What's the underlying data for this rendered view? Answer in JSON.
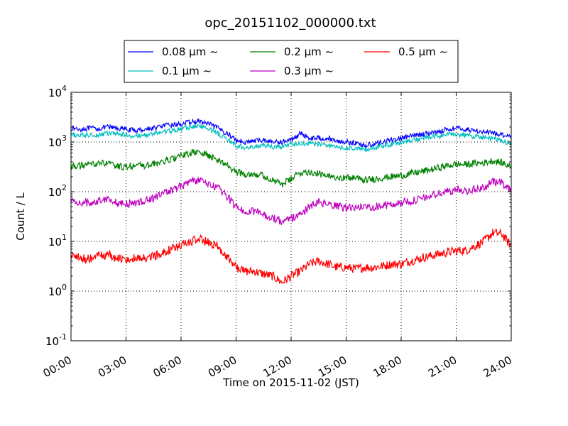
{
  "chart_data": {
    "type": "line",
    "title": "opc_20151102_000000.txt",
    "xlabel": "Time on 2015-11-02 (JST)",
    "ylabel": "Count / L",
    "x_ticks": [
      "00:00",
      "03:00",
      "06:00",
      "09:00",
      "12:00",
      "15:00",
      "18:00",
      "21:00",
      "24:00"
    ],
    "xlim": [
      0,
      24
    ],
    "y_scale": "log",
    "ylim": [
      0.1,
      10000
    ],
    "y_ticks": [
      {
        "value": 0.1,
        "base": "10",
        "exp": "-1"
      },
      {
        "value": 1,
        "base": "10",
        "exp": "0"
      },
      {
        "value": 10,
        "base": "10",
        "exp": "1"
      },
      {
        "value": 100,
        "base": "10",
        "exp": "2"
      },
      {
        "value": 1000,
        "base": "10",
        "exp": "3"
      },
      {
        "value": 10000,
        "base": "10",
        "exp": "4"
      }
    ],
    "grid": true,
    "legend_position": "top",
    "legend_suffix": "μm ∼",
    "x": [
      0,
      0.5,
      1,
      1.5,
      2,
      2.5,
      3,
      3.5,
      4,
      4.5,
      5,
      5.5,
      6,
      6.5,
      7,
      7.5,
      8,
      8.5,
      9,
      9.5,
      10,
      10.5,
      11,
      11.5,
      12,
      12.5,
      13,
      13.5,
      14,
      14.5,
      15,
      15.5,
      16,
      16.5,
      17,
      17.5,
      18,
      18.5,
      19,
      19.5,
      20,
      20.5,
      21,
      21.5,
      22,
      22.5,
      23,
      23.5,
      24
    ],
    "series": [
      {
        "name": "0.08",
        "color": "#0000ff",
        "noise": 0.05,
        "values": [
          1900,
          1800,
          1900,
          1850,
          2000,
          1900,
          1800,
          1700,
          1800,
          1900,
          2100,
          2200,
          2300,
          2500,
          2600,
          2300,
          1900,
          1500,
          1100,
          1000,
          1050,
          1100,
          1000,
          1000,
          1100,
          1500,
          1200,
          1200,
          1200,
          1050,
          1000,
          950,
          850,
          900,
          1000,
          1100,
          1200,
          1300,
          1400,
          1500,
          1600,
          1800,
          1900,
          1800,
          1700,
          1600,
          1500,
          1400,
          1350
        ]
      },
      {
        "name": "0.1",
        "color": "#00bfbf",
        "noise": 0.05,
        "values": [
          1400,
          1350,
          1400,
          1400,
          1500,
          1450,
          1400,
          1300,
          1350,
          1450,
          1600,
          1700,
          1800,
          2000,
          2100,
          1900,
          1500,
          1150,
          850,
          750,
          800,
          850,
          800,
          800,
          900,
          900,
          950,
          900,
          850,
          800,
          750,
          750,
          700,
          750,
          850,
          900,
          1000,
          1050,
          1150,
          1250,
          1300,
          1400,
          1450,
          1350,
          1300,
          1250,
          1150,
          1050,
          950
        ]
      },
      {
        "name": "0.2",
        "color": "#008000",
        "noise": 0.07,
        "values": [
          330,
          330,
          350,
          380,
          370,
          320,
          320,
          340,
          330,
          360,
          400,
          450,
          520,
          600,
          620,
          530,
          440,
          340,
          250,
          230,
          230,
          210,
          170,
          140,
          180,
          240,
          250,
          230,
          200,
          200,
          190,
          190,
          170,
          180,
          190,
          200,
          210,
          230,
          250,
          270,
          300,
          330,
          360,
          350,
          370,
          380,
          420,
          380,
          320
        ]
      },
      {
        "name": "0.3",
        "color": "#bf00bf",
        "noise": 0.08,
        "values": [
          65,
          60,
          60,
          65,
          75,
          60,
          55,
          60,
          65,
          75,
          90,
          110,
          130,
          160,
          170,
          140,
          120,
          80,
          50,
          40,
          40,
          35,
          30,
          25,
          30,
          35,
          50,
          60,
          55,
          50,
          48,
          48,
          50,
          50,
          52,
          55,
          60,
          65,
          70,
          80,
          90,
          100,
          110,
          105,
          110,
          120,
          160,
          150,
          110
        ]
      },
      {
        "name": "0.5",
        "color": "#ff0000",
        "noise": 0.09,
        "values": [
          5.5,
          4.5,
          4.5,
          5,
          5.5,
          4.5,
          4.5,
          4.5,
          4.5,
          5,
          6,
          7,
          8,
          10,
          11,
          9.5,
          8,
          5,
          3,
          2.5,
          2.5,
          2.2,
          2,
          1.5,
          2,
          2.5,
          3.5,
          4,
          3.5,
          3,
          3,
          2.8,
          3,
          3,
          3.2,
          3.5,
          3.5,
          4,
          4.5,
          5,
          5.5,
          6,
          6.5,
          6.5,
          8,
          10,
          15,
          14,
          8
        ]
      }
    ]
  }
}
